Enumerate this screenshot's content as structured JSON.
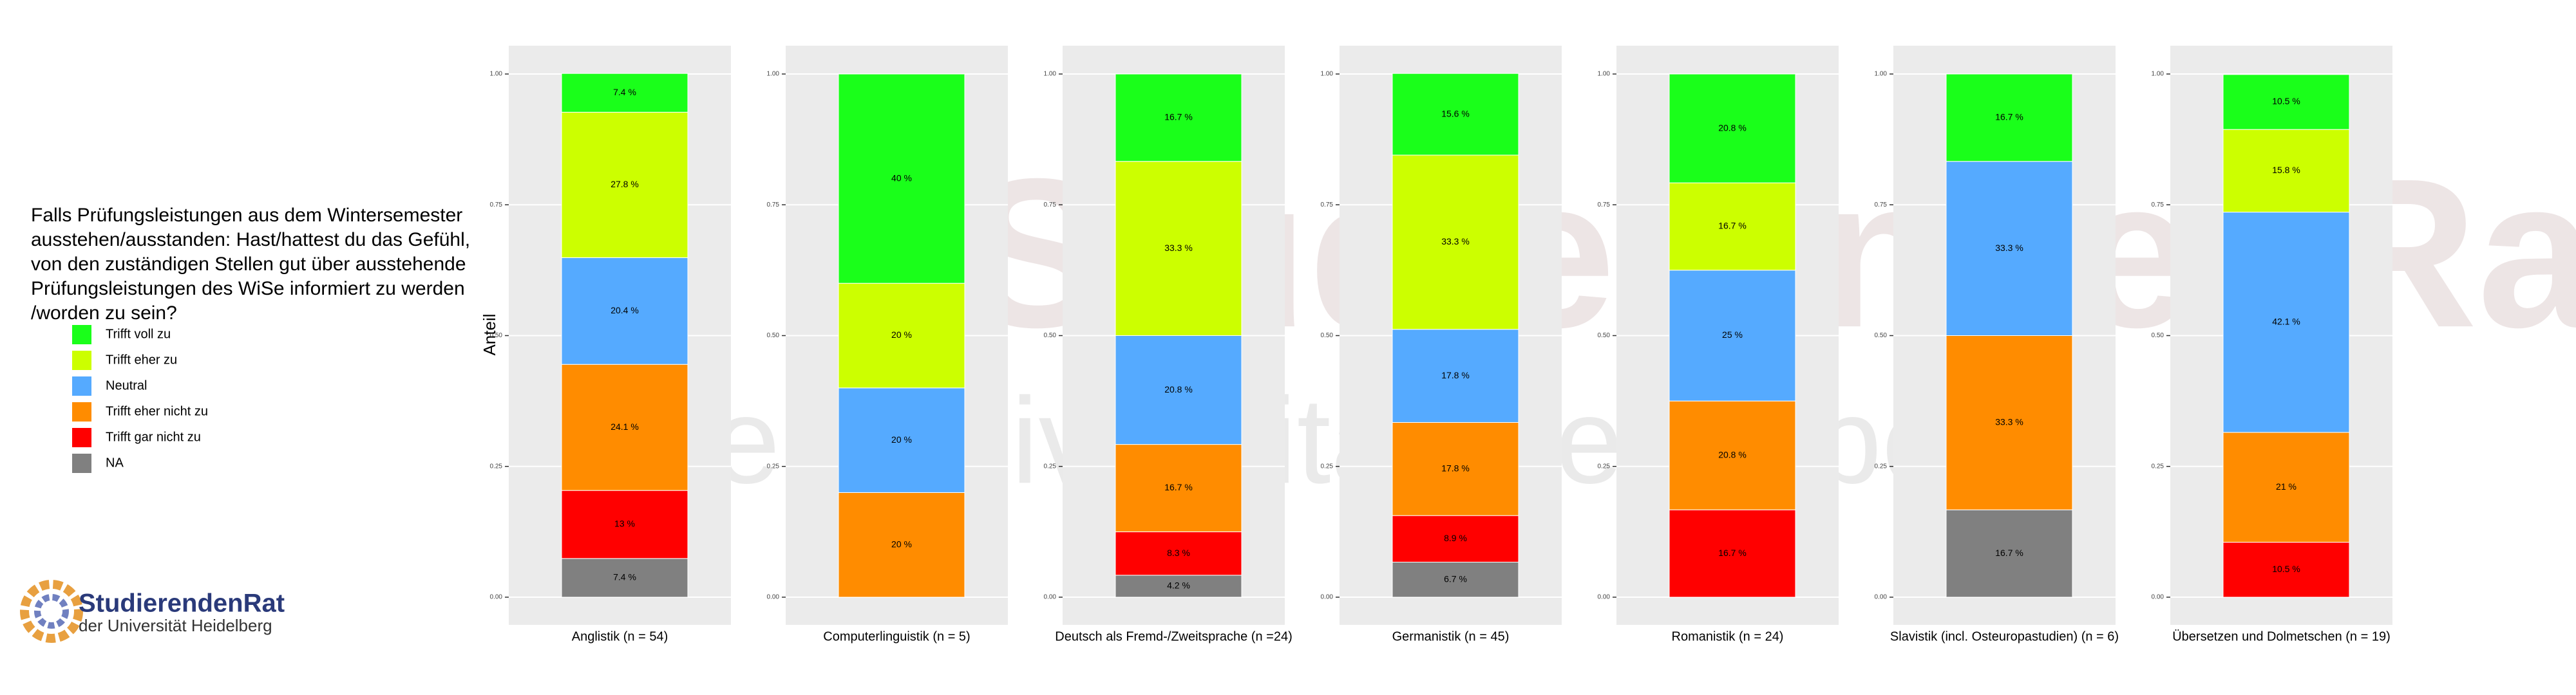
{
  "chart_data": {
    "type": "bar",
    "stacked": true,
    "title": [
      "Falls Prüfungsleistungen aus dem Wintersemester",
      "ausstehen/ausstanden: Hast/hattest du das Gefühl,",
      "von den zuständigen Stellen gut über ausstehende",
      "Prüfungsleistungen des WiSe informiert zu werden",
      "/worden zu sein?"
    ],
    "ylabel": "Anteil",
    "categories": [
      "Anglistik (n = 54)",
      "Computerlinguistik (n = 5)",
      "Deutsch als Fremd-/Zweitsprache (n =24)",
      "Germanistik (n = 45)",
      "Romanistik (n = 24)",
      "Slavistik (incl. Osteuropastudien) (n = 6)",
      "Übersetzen und Dolmetschen (n = 19)"
    ],
    "series": [
      {
        "name": "Trifft voll zu",
        "color": "#1aff1a",
        "values": [
          0.074,
          0.4,
          0.167,
          0.156,
          0.208,
          0.167,
          0.105
        ],
        "value_labels": [
          "7.4 %",
          "40 %",
          "16.7 %",
          "15.6 %",
          "20.8 %",
          "16.7 %",
          "10.5 %"
        ]
      },
      {
        "name": "Trifft eher zu",
        "color": "#ccff00",
        "values": [
          0.278,
          0.2,
          0.333,
          0.333,
          0.167,
          null,
          0.158
        ],
        "value_labels": [
          "27.8 %",
          "20 %",
          "33.3 %",
          "33.3 %",
          "16.7 %",
          null,
          "15.8 %"
        ]
      },
      {
        "name": "Neutral",
        "color": "#55aaff",
        "values": [
          0.204,
          0.2,
          0.208,
          0.178,
          0.25,
          0.333,
          0.421
        ],
        "value_labels": [
          "20.4 %",
          "20 %",
          "20.8 %",
          "17.8 %",
          "25 %",
          "33.3 %",
          "42.1 %"
        ]
      },
      {
        "name": "Trifft eher nicht zu",
        "color": "#ff8c00",
        "values": [
          0.241,
          0.2,
          0.167,
          0.178,
          0.208,
          0.333,
          0.21
        ],
        "value_labels": [
          "24.1 %",
          "20 %",
          "16.7 %",
          "17.8 %",
          "20.8 %",
          "33.3 %",
          "21 %"
        ]
      },
      {
        "name": "Trifft gar nicht zu",
        "color": "#ff0000",
        "values": [
          0.13,
          null,
          0.083,
          0.089,
          0.167,
          null,
          0.105
        ],
        "value_labels": [
          "13 %",
          null,
          "8.3 %",
          "8.9 %",
          "16.7 %",
          null,
          "10.5 %"
        ]
      },
      {
        "name": "NA",
        "color": "#808080",
        "values": [
          0.074,
          null,
          0.042,
          0.067,
          null,
          0.167,
          null
        ],
        "value_labels": [
          "7.4 %",
          null,
          "4.2 %",
          "6.7 %",
          null,
          "16.7 %",
          null
        ]
      }
    ],
    "ylim": [
      0,
      1
    ],
    "yticks": [
      {
        "value": 0,
        "label": "0.00"
      },
      {
        "value": 0.25,
        "label": "0.25"
      },
      {
        "value": 0.5,
        "label": "0.50"
      },
      {
        "value": 0.75,
        "label": "0.75"
      },
      {
        "value": 1,
        "label": "1.00"
      }
    ],
    "grid": true,
    "legend": "left"
  },
  "logo": {
    "name": "StudierendenRat",
    "subtitle": "der Universität Heidelberg"
  }
}
